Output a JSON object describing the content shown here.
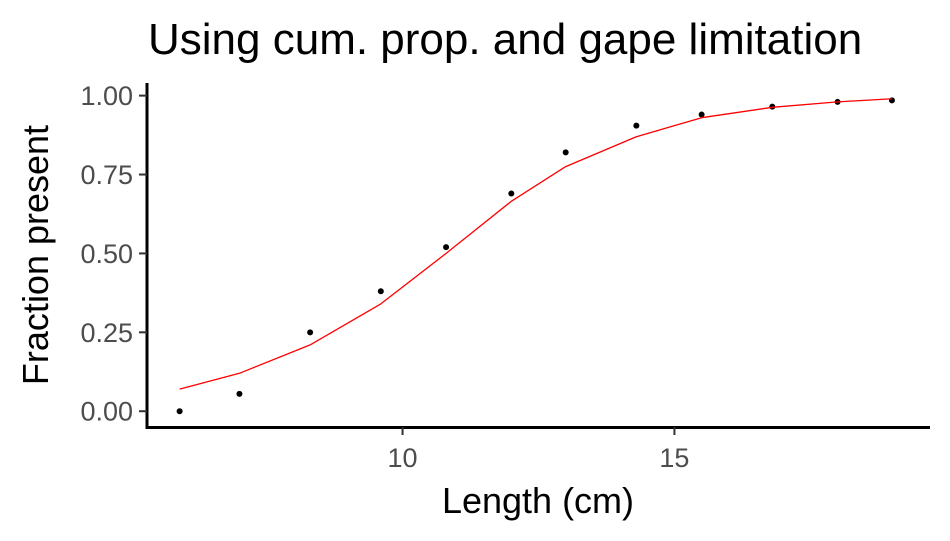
{
  "chart_data": {
    "type": "scatter",
    "title": "Using cum. prop. and gape limitation",
    "xlabel": "Length (cm)",
    "ylabel": "Fraction present",
    "xlim": [
      5.3,
      19.7
    ],
    "ylim": [
      -0.05,
      1.04
    ],
    "x_ticks": [
      10,
      15
    ],
    "x_tick_labels": [
      "10",
      "15"
    ],
    "y_ticks": [
      0.0,
      0.25,
      0.5,
      0.75,
      1.0
    ],
    "y_tick_labels": [
      "0.00",
      "0.25",
      "0.50",
      "0.75",
      "1.00"
    ],
    "grid": false,
    "legend": "none",
    "series": [
      {
        "type": "scatter",
        "color": "#000000",
        "x": [
          5.9,
          7.0,
          8.3,
          9.6,
          10.8,
          12.0,
          13.0,
          14.3,
          15.5,
          16.8,
          18.0,
          19.0
        ],
        "y": [
          0.0,
          0.055,
          0.25,
          0.38,
          0.52,
          0.69,
          0.82,
          0.905,
          0.94,
          0.965,
          0.98,
          0.985
        ]
      },
      {
        "type": "line",
        "color": "#ff0000",
        "x": [
          5.9,
          7.0,
          8.3,
          9.6,
          10.8,
          12.0,
          13.0,
          14.3,
          15.5,
          16.8,
          18.0,
          19.0
        ],
        "y": [
          0.07,
          0.12,
          0.21,
          0.34,
          0.5,
          0.665,
          0.775,
          0.87,
          0.93,
          0.963,
          0.98,
          0.99
        ]
      }
    ]
  }
}
